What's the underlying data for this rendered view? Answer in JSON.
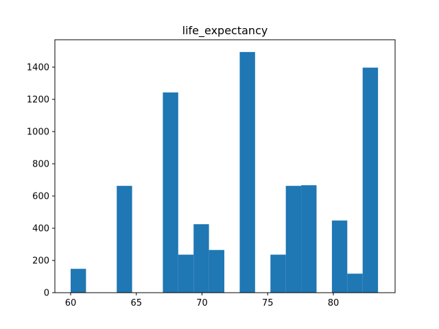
{
  "chart_data": {
    "type": "bar",
    "title": "life_expectancy",
    "xlabel": "",
    "ylabel": "",
    "xlim": [
      58.8,
      84.7
    ],
    "ylim": [
      0,
      1570
    ],
    "bar_color": "#1f77b4",
    "grid": false,
    "legend": "none",
    "x_ticks": [
      60,
      65,
      70,
      75,
      80
    ],
    "y_ticks": [
      0,
      200,
      400,
      600,
      800,
      1000,
      1200,
      1400
    ],
    "bins": [
      {
        "x0": 60.0,
        "x1": 61.17,
        "value": 148
      },
      {
        "x0": 61.17,
        "x1": 62.34,
        "value": 0
      },
      {
        "x0": 62.34,
        "x1": 63.51,
        "value": 0
      },
      {
        "x0": 63.51,
        "x1": 64.68,
        "value": 663
      },
      {
        "x0": 64.68,
        "x1": 65.85,
        "value": 0
      },
      {
        "x0": 65.85,
        "x1": 67.02,
        "value": 0
      },
      {
        "x0": 67.02,
        "x1": 68.19,
        "value": 1243
      },
      {
        "x0": 68.19,
        "x1": 69.36,
        "value": 236
      },
      {
        "x0": 69.36,
        "x1": 70.53,
        "value": 425
      },
      {
        "x0": 70.53,
        "x1": 71.7,
        "value": 265
      },
      {
        "x0": 71.7,
        "x1": 72.87,
        "value": 0
      },
      {
        "x0": 72.87,
        "x1": 74.04,
        "value": 1494
      },
      {
        "x0": 74.04,
        "x1": 75.21,
        "value": 0
      },
      {
        "x0": 75.21,
        "x1": 76.38,
        "value": 236
      },
      {
        "x0": 76.38,
        "x1": 77.55,
        "value": 663
      },
      {
        "x0": 77.55,
        "x1": 78.72,
        "value": 667
      },
      {
        "x0": 78.72,
        "x1": 79.89,
        "value": 0
      },
      {
        "x0": 79.89,
        "x1": 81.06,
        "value": 448
      },
      {
        "x0": 81.06,
        "x1": 82.23,
        "value": 118
      },
      {
        "x0": 82.23,
        "x1": 83.4,
        "value": 1397
      }
    ]
  }
}
